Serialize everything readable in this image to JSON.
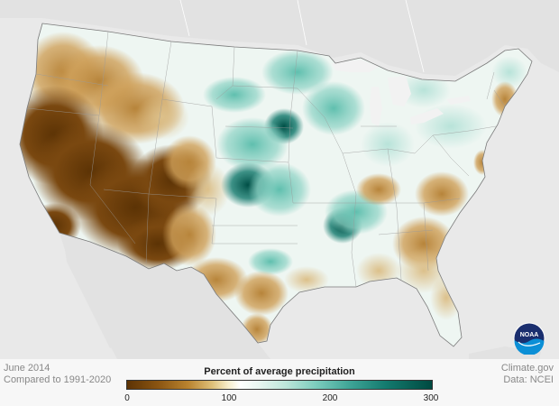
{
  "meta": {
    "date": "June 2014",
    "comparison": "Compared to 1991-2020",
    "source": "Climate.gov",
    "data_source": "Data: NCEI"
  },
  "legend": {
    "title": "Percent of average precipitation",
    "ticks": [
      "0",
      "100",
      "200",
      "300"
    ],
    "colors": [
      "#5c3305",
      "#b9832f",
      "#f6ecc8",
      "#ffffff",
      "#bde6da",
      "#3fa597",
      "#004a41"
    ]
  },
  "logo": {
    "text": "NOAA"
  }
}
